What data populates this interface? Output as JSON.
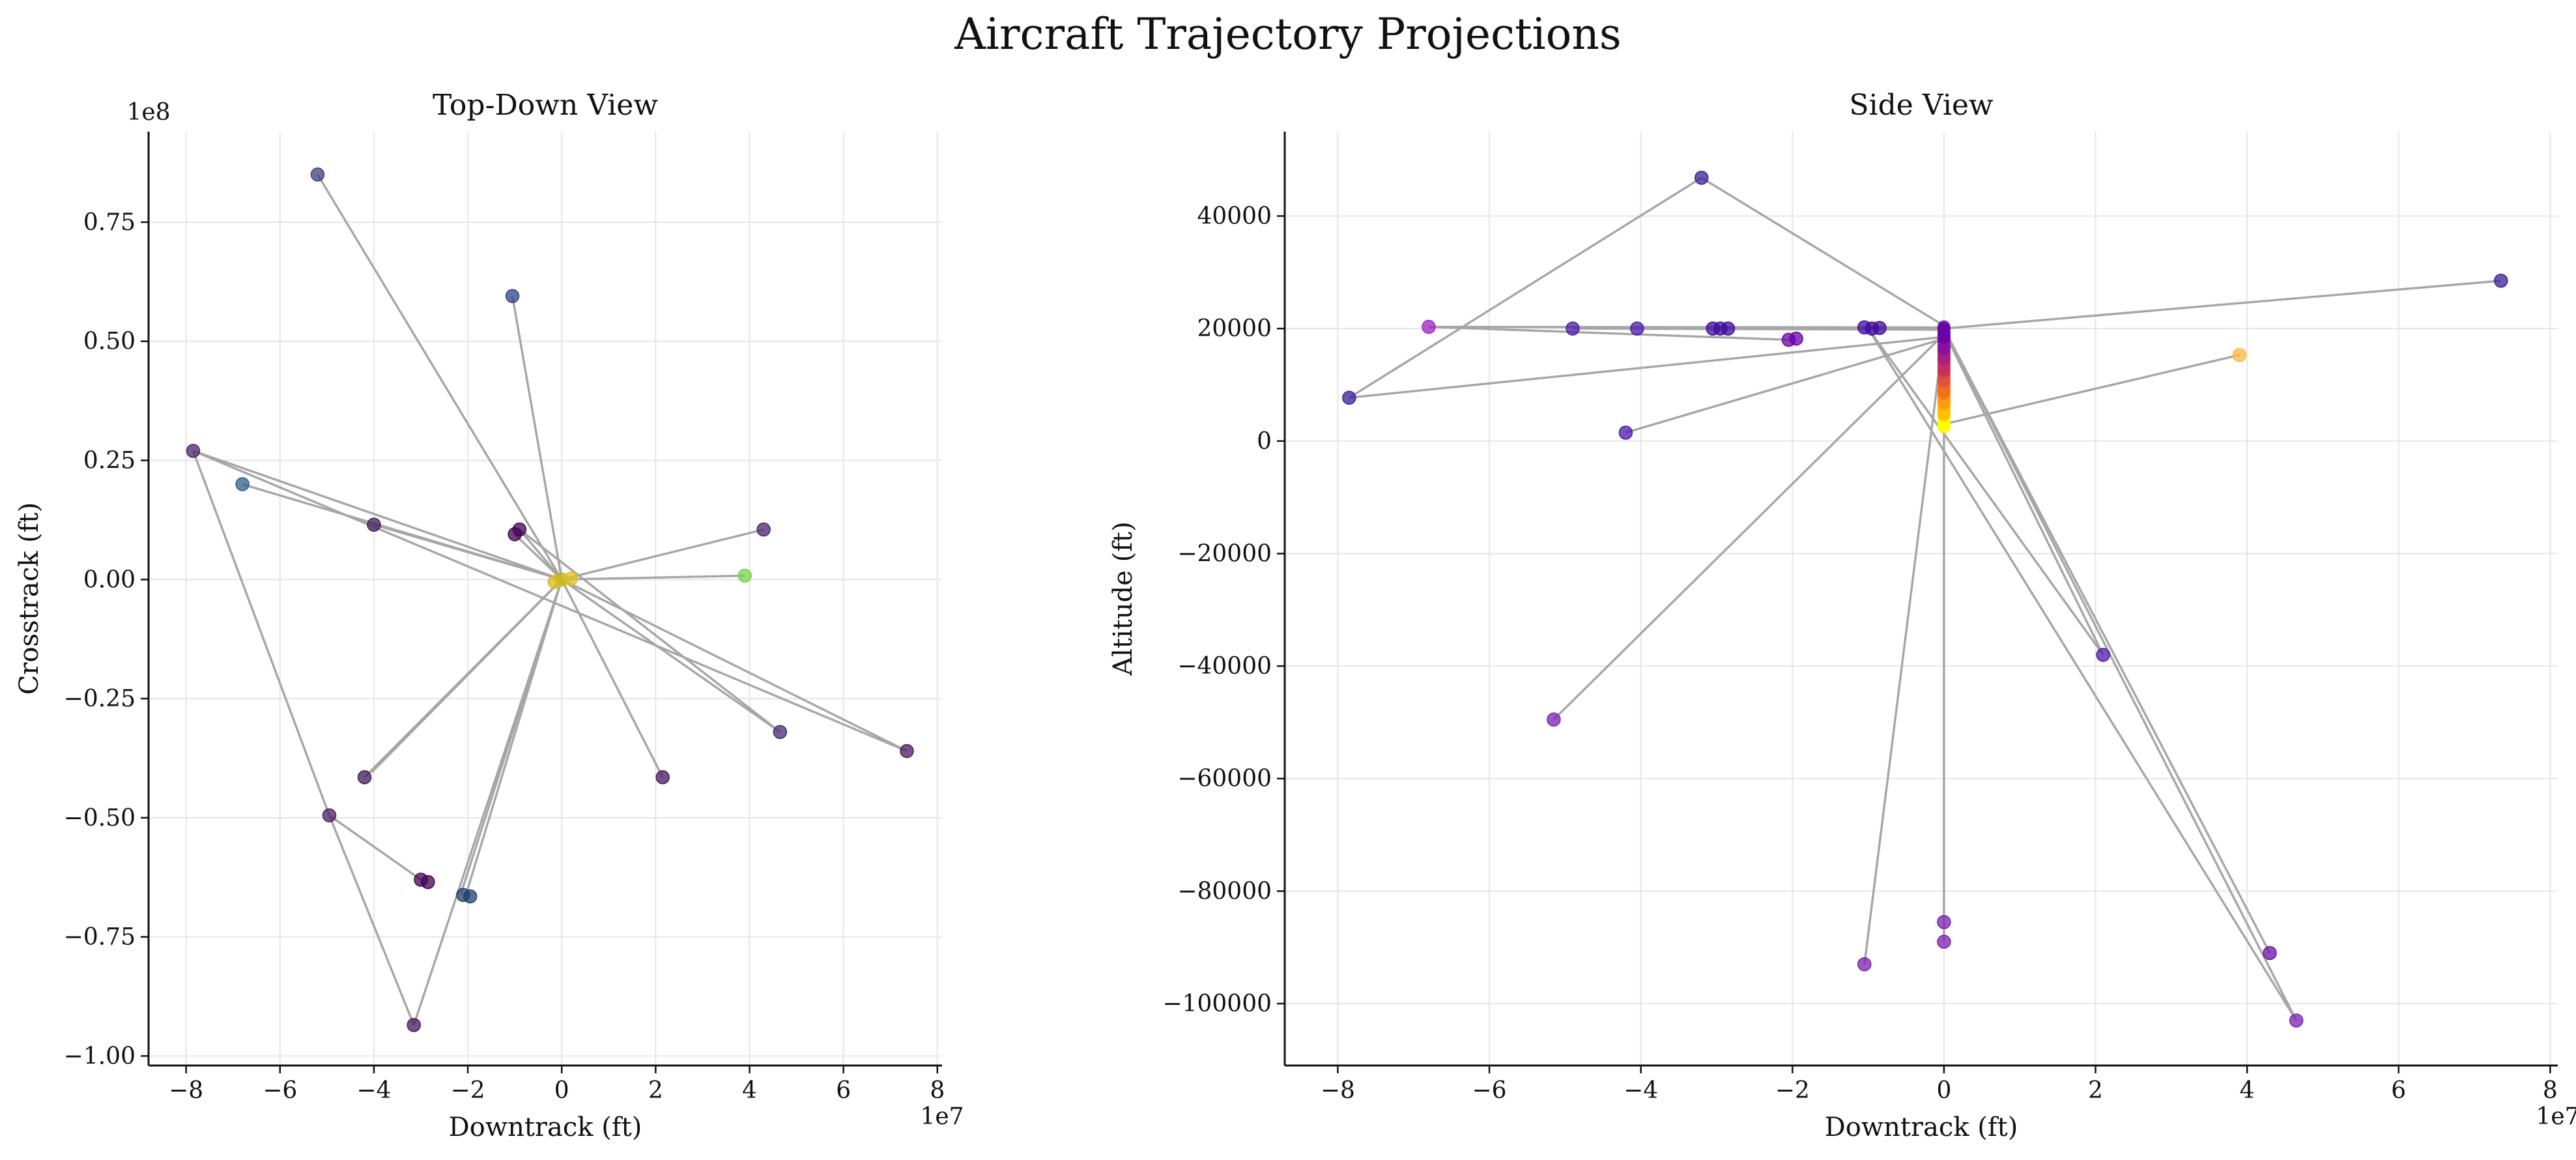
{
  "figure": {
    "title": "Aircraft Trajectory Projections"
  },
  "chart_data": [
    {
      "type": "scatter",
      "title": "Top-Down View",
      "xlabel": "Downtrack (ft)",
      "ylabel": "Crosstrack (ft)",
      "x_offset_text": "1e7",
      "y_offset_text": "1e8",
      "xlim": [
        -88000000.0,
        81000000.0
      ],
      "ylim": [
        -102000000.0,
        94000000.0
      ],
      "xticks": [
        -80000000.0,
        -60000000.0,
        -40000000.0,
        -20000000.0,
        0,
        20000000.0,
        40000000.0,
        60000000.0,
        80000000.0
      ],
      "xtick_labels": [
        "−8",
        "−6",
        "−4",
        "−2",
        "0",
        "2",
        "4",
        "6",
        "8"
      ],
      "yticks": [
        -100000000.0,
        -75000000.0,
        -50000000.0,
        -25000000.0,
        0,
        25000000.0,
        50000000.0,
        75000000.0
      ],
      "ytick_labels": [
        "−1.00",
        "−0.75",
        "−0.50",
        "−0.25",
        "0.00",
        "0.25",
        "0.50",
        "0.75"
      ],
      "grid": true,
      "line_color": "#a6a6a6",
      "trajectory_segments": [
        [
          [
            0,
            0
          ],
          [
            -52000000.0,
            85000000.0
          ]
        ],
        [
          [
            0,
            0
          ],
          [
            -10500000.0,
            59500000.0
          ]
        ],
        [
          [
            0,
            0
          ],
          [
            -78500000.0,
            27000000.0
          ]
        ],
        [
          [
            0,
            0
          ],
          [
            -68000000.0,
            20000000.0
          ]
        ],
        [
          [
            0,
            0
          ],
          [
            -40000000.0,
            11500000.0
          ]
        ],
        [
          [
            0,
            0
          ],
          [
            -10000000.0,
            9500000.0
          ]
        ],
        [
          [
            0,
            0
          ],
          [
            -9000000.0,
            10500000.0
          ]
        ],
        [
          [
            0,
            0
          ],
          [
            43000000.0,
            10500000.0
          ]
        ],
        [
          [
            0,
            0
          ],
          [
            39000000.0,
            800000.0
          ]
        ],
        [
          [
            0,
            0
          ],
          [
            46500000.0,
            -32000000.0
          ]
        ],
        [
          [
            0,
            0
          ],
          [
            73500000.0,
            -36000000.0
          ]
        ],
        [
          [
            0,
            0
          ],
          [
            21500000.0,
            -41500000.0
          ]
        ],
        [
          [
            0,
            0
          ],
          [
            -42000000.0,
            -41500000.0
          ]
        ],
        [
          [
            0,
            0
          ],
          [
            -40500000.0,
            -40500000.0
          ]
        ],
        [
          [
            0,
            0
          ],
          [
            -20500000.0,
            -66500000.0
          ]
        ],
        [
          [
            0,
            0
          ],
          [
            -21500000.0,
            -66000000.0
          ]
        ],
        [
          [
            0,
            0
          ],
          [
            -31500000.0,
            -93500000.0
          ]
        ],
        [
          [
            -78500000.0,
            27000000.0
          ],
          [
            -49500000.0,
            -49500000.0
          ]
        ],
        [
          [
            -49500000.0,
            -49500000.0
          ],
          [
            -30000000.0,
            -63000000.0
          ]
        ],
        [
          [
            -49500000.0,
            -49500000.0
          ],
          [
            -31500000.0,
            -93500000.0
          ]
        ],
        [
          [
            -78500000.0,
            27000000.0
          ],
          [
            73500000.0,
            -36000000.0
          ]
        ],
        [
          [
            -9000000.0,
            10500000.0
          ],
          [
            46500000.0,
            -32000000.0
          ]
        ]
      ],
      "points": [
        {
          "x": -52000000.0,
          "y": 85000000.0,
          "color": "#3b3f7a"
        },
        {
          "x": -10500000.0,
          "y": 59500000.0,
          "color": "#33408a"
        },
        {
          "x": -78500000.0,
          "y": 27000000.0,
          "color": "#4a2468"
        },
        {
          "x": -68000000.0,
          "y": 20000000.0,
          "color": "#2f5f8a"
        },
        {
          "x": -40000000.0,
          "y": 11500000.0,
          "color": "#3e1a5a"
        },
        {
          "x": -10000000.0,
          "y": 9500000.0,
          "color": "#440154"
        },
        {
          "x": -9000000.0,
          "y": 10500000.0,
          "color": "#440154"
        },
        {
          "x": 43000000.0,
          "y": 10500000.0,
          "color": "#46246e"
        },
        {
          "x": 39000000.0,
          "y": 800000.0,
          "color": "#7ad151"
        },
        {
          "x": 46500000.0,
          "y": -32000000.0,
          "color": "#46296e"
        },
        {
          "x": 73500000.0,
          "y": -36000000.0,
          "color": "#4a1a60"
        },
        {
          "x": 21500000.0,
          "y": -41500000.0,
          "color": "#45175e"
        },
        {
          "x": -42000000.0,
          "y": -41500000.0,
          "color": "#401a58"
        },
        {
          "x": -49500000.0,
          "y": -49500000.0,
          "color": "#4a2060"
        },
        {
          "x": -30000000.0,
          "y": -63000000.0,
          "color": "#440154"
        },
        {
          "x": -28500000.0,
          "y": -63500000.0,
          "color": "#440154"
        },
        {
          "x": -21000000.0,
          "y": -66200000.0,
          "color": "#21406e"
        },
        {
          "x": -19500000.0,
          "y": -66500000.0,
          "color": "#21406e"
        },
        {
          "x": -31500000.0,
          "y": -93500000.0,
          "color": "#45175e"
        },
        {
          "x": 0,
          "y": 0,
          "color": "#c8b810"
        },
        {
          "x": 2000000.0,
          "y": 200000.0,
          "color": "#e0c020"
        },
        {
          "x": -1500000.0,
          "y": -500000.0,
          "color": "#d4bb18"
        }
      ]
    },
    {
      "type": "scatter",
      "title": "Side View",
      "xlabel": "Downtrack (ft)",
      "ylabel": "Altitude (ft)",
      "x_offset_text": "1e7",
      "xlim": [
        -87000000.0,
        81000000.0
      ],
      "ylim": [
        -111000,
        55000
      ],
      "xticks": [
        -80000000.0,
        -60000000.0,
        -40000000.0,
        -20000000.0,
        0,
        20000000.0,
        40000000.0,
        60000000.0,
        80000000.0
      ],
      "xtick_labels": [
        "−8",
        "−6",
        "−4",
        "−2",
        "0",
        "2",
        "4",
        "6",
        "8"
      ],
      "yticks": [
        -100000,
        -80000,
        -60000,
        -40000,
        -20000,
        0,
        20000,
        40000
      ],
      "ytick_labels": [
        "−100000",
        "−80000",
        "−60000",
        "−40000",
        "−20000",
        "0",
        "20000",
        "40000"
      ],
      "grid": true,
      "line_color": "#a6a6a6",
      "trajectory_segments": [
        [
          [
            0,
            20500
          ],
          [
            -32000000.0,
            46800
          ]
        ],
        [
          [
            0,
            18500
          ],
          [
            -78500000.0,
            7700
          ]
        ],
        [
          [
            -32000000.0,
            46800
          ],
          [
            -78500000.0,
            7700
          ]
        ],
        [
          [
            0,
            20000
          ],
          [
            73500000.0,
            28500
          ]
        ],
        [
          [
            0,
            20200
          ],
          [
            -68000000.0,
            20300
          ]
        ],
        [
          [
            -68000000.0,
            20300
          ],
          [
            -20500000.0,
            18000
          ]
        ],
        [
          [
            0,
            19800
          ],
          [
            -49000000.0,
            20000
          ]
        ],
        [
          [
            0,
            18200
          ],
          [
            -42000000.0,
            1500
          ]
        ],
        [
          [
            0,
            19000
          ],
          [
            -51500000.0,
            -49500
          ]
        ],
        [
          [
            0,
            19600
          ],
          [
            -10500000.0,
            -93000
          ]
        ],
        [
          [
            0,
            3000
          ],
          [
            39000000.0,
            15300
          ]
        ],
        [
          [
            0,
            19500
          ],
          [
            21000000.0,
            -38000
          ]
        ],
        [
          [
            0,
            20000
          ],
          [
            43000000.0,
            -91000
          ]
        ],
        [
          [
            0,
            20000
          ],
          [
            46500000.0,
            -103000
          ]
        ],
        [
          [
            0,
            20000
          ],
          [
            0,
            -89000
          ]
        ],
        [
          [
            -10000000.0,
            20000
          ],
          [
            21000000.0,
            -38000
          ]
        ],
        [
          [
            -10000000.0,
            20000
          ],
          [
            46500000.0,
            -103000
          ]
        ]
      ],
      "vertical_stack": {
        "x": 0,
        "y_from": 2500,
        "y_to": 20300,
        "colors": [
          "#ffff00",
          "#ffc000",
          "#ff9a10",
          "#f07020",
          "#e05040",
          "#c83060",
          "#a82080",
          "#8a10a0",
          "#6a00a8"
        ]
      },
      "points": [
        {
          "x": -32000000.0,
          "y": 46800,
          "color": "#3a1f9a"
        },
        {
          "x": -78500000.0,
          "y": 7700,
          "color": "#3a1f9a"
        },
        {
          "x": 73500000.0,
          "y": 28500,
          "color": "#3a1f9a"
        },
        {
          "x": -68000000.0,
          "y": 20300,
          "color": "#a020c0"
        },
        {
          "x": -49000000.0,
          "y": 20000,
          "color": "#4b1aa8"
        },
        {
          "x": -40500000.0,
          "y": 20000,
          "color": "#4b1aa8"
        },
        {
          "x": -30500000.0,
          "y": 20000,
          "color": "#3d0aa0"
        },
        {
          "x": -29500000.0,
          "y": 20000,
          "color": "#3d0aa0"
        },
        {
          "x": -28500000.0,
          "y": 20000,
          "color": "#3d0aa0"
        },
        {
          "x": -20500000.0,
          "y": 18000,
          "color": "#6a00a8"
        },
        {
          "x": -19500000.0,
          "y": 18200,
          "color": "#6a00a8"
        },
        {
          "x": -10500000.0,
          "y": 20200,
          "color": "#3d0aa0"
        },
        {
          "x": -9500000.0,
          "y": 20000,
          "color": "#3d0aa0"
        },
        {
          "x": -8500000.0,
          "y": 20100,
          "color": "#3d0aa0"
        },
        {
          "x": -42000000.0,
          "y": 1500,
          "color": "#4b1aa8"
        },
        {
          "x": 39000000.0,
          "y": 15300,
          "color": "#fdb840"
        },
        {
          "x": -51500000.0,
          "y": -49500,
          "color": "#7a20b0"
        },
        {
          "x": 21000000.0,
          "y": -38000,
          "color": "#4b1aa8"
        },
        {
          "x": -10500000.0,
          "y": -93000,
          "color": "#7a20b0"
        },
        {
          "x": 0,
          "y": -85500,
          "color": "#7a20b0"
        },
        {
          "x": 0,
          "y": -89000,
          "color": "#7a20b0"
        },
        {
          "x": 43000000.0,
          "y": -91000,
          "color": "#6a10a8"
        },
        {
          "x": 46500000.0,
          "y": -103000,
          "color": "#7a20b0"
        }
      ]
    }
  ]
}
